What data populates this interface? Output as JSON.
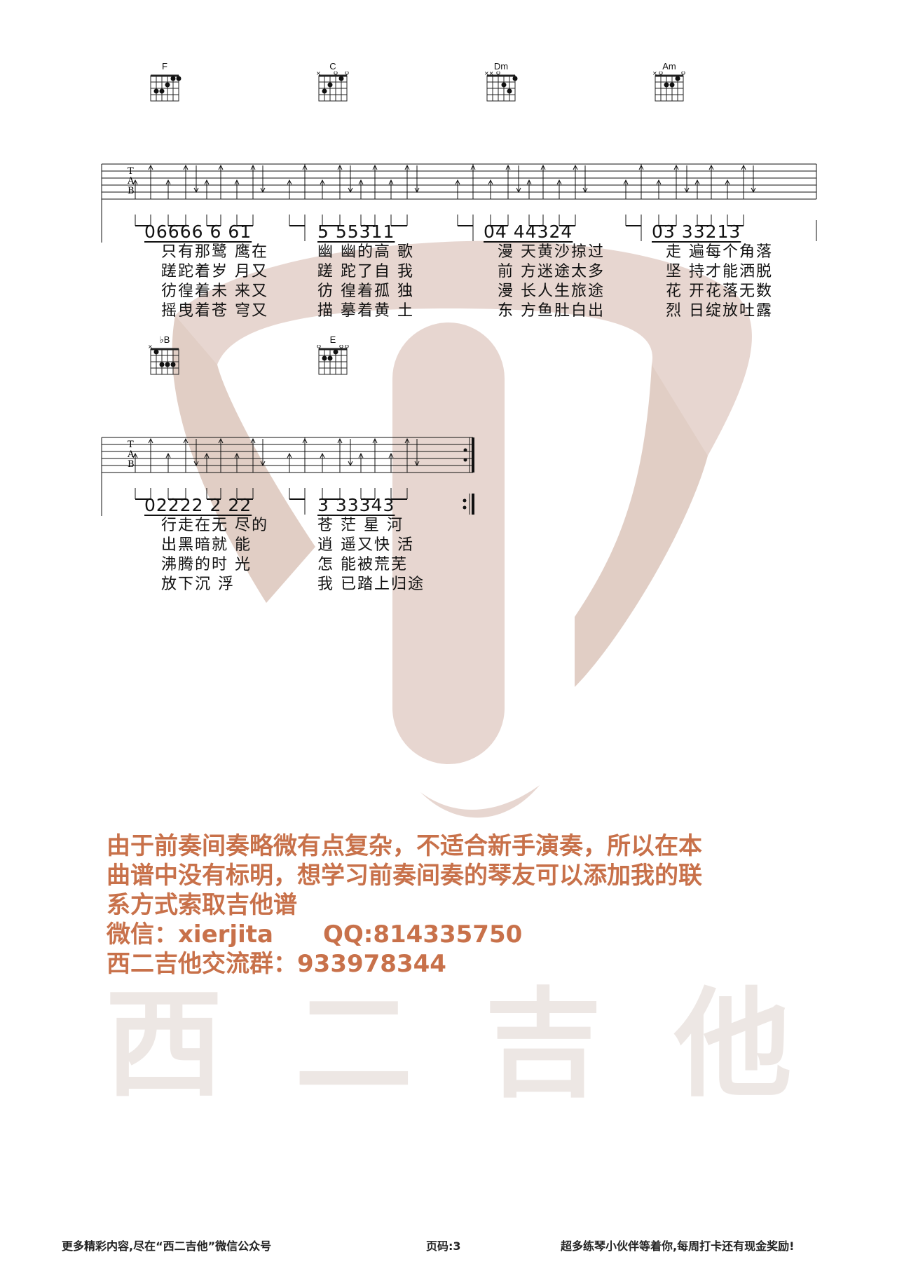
{
  "systems": [
    {
      "chords": [
        "F",
        "C",
        "Dm",
        "Am"
      ],
      "bars": [
        {
          "notes": "06666 6 61"
        },
        {
          "notes": "5 55311"
        },
        {
          "notes": "04 44324"
        },
        {
          "notes": "03 33213"
        }
      ],
      "lyrics": [
        [
          "只有那鹭 鹰在",
          "幽 幽的高 歌",
          "漫 天黄沙掠过",
          "走 遍每个角落"
        ],
        [
          "蹉跎着岁 月又",
          "蹉 跎了自 我",
          "前 方迷途太多",
          "坚 持才能洒脱"
        ],
        [
          "彷徨着未 来又",
          "彷 徨着孤 独",
          "漫 长人生旅途",
          "花 开花落无数"
        ],
        [
          "摇曳着苍 穹又",
          "描 摹着黄 土",
          "东 方鱼肚白出",
          "烈 日绽放吐露"
        ]
      ]
    },
    {
      "chords": [
        "♭B",
        "E"
      ],
      "bars": [
        {
          "notes": "02222 2 22"
        },
        {
          "notes": "3 33343"
        }
      ],
      "lyrics": [
        [
          "行走在无 尽的",
          "苍 茫 星 河"
        ],
        [
          "出黑暗就 能",
          "逍 遥又快 活"
        ],
        [
          "沸腾的时 光",
          "怎 能被荒芜"
        ],
        [
          "放下沉 浮",
          "我 已踏上归途"
        ]
      ]
    }
  ],
  "tab_letters": [
    "T",
    "A",
    "B"
  ],
  "notice": {
    "line1": "由于前奏间奏略微有点复杂，不适合新手演奏，所以在本",
    "line2": "曲谱中没有标明，想学习前奏间奏的琴友可以添加我的联",
    "line3": "系方式索取吉他谱",
    "line4": "微信：xierjita      QQ:814335750",
    "line5": "西二吉他交流群：933978344"
  },
  "watermark": {
    "chars": [
      "西",
      "二",
      "吉",
      "他"
    ],
    "color": "#c9a596"
  },
  "footer": {
    "left": "更多精彩内容,尽在“西二吉他”微信公众号",
    "center": "页码:3",
    "right": "超多练琴小伙伴等着你,每周打卡还有现金奖励!"
  }
}
